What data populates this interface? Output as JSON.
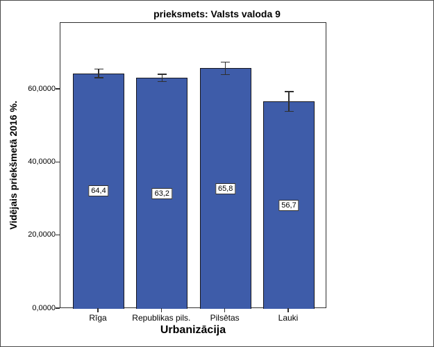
{
  "chart_data": {
    "type": "bar",
    "title": "prieksmets: Valsts valoda 9",
    "xlabel": "Urbanizācija",
    "ylabel": "Vidējais priekšmetā 2016 %.",
    "categories": [
      "Rīga",
      "Republikas pils.",
      "Pilsētas",
      "Lauki"
    ],
    "values": [
      64.4,
      63.2,
      65.8,
      56.7
    ],
    "value_labels": [
      "64,4",
      "63,2",
      "65,8",
      "56,7"
    ],
    "errors": [
      1.2,
      1.0,
      1.7,
      2.7
    ],
    "yticks": [
      0,
      20,
      40,
      60
    ],
    "ytick_labels": [
      "0,0000",
      "20,0000",
      "40,0000",
      "60,0000"
    ],
    "ylim": [
      0,
      78.2
    ],
    "grid": false,
    "legend": false,
    "colors": {
      "bar_fill": "#3e5ca9",
      "bar_border": "#16161d",
      "error_bar": "#2f2f2f",
      "axis_frame": "#2e2e2e",
      "text": "#000000"
    }
  }
}
